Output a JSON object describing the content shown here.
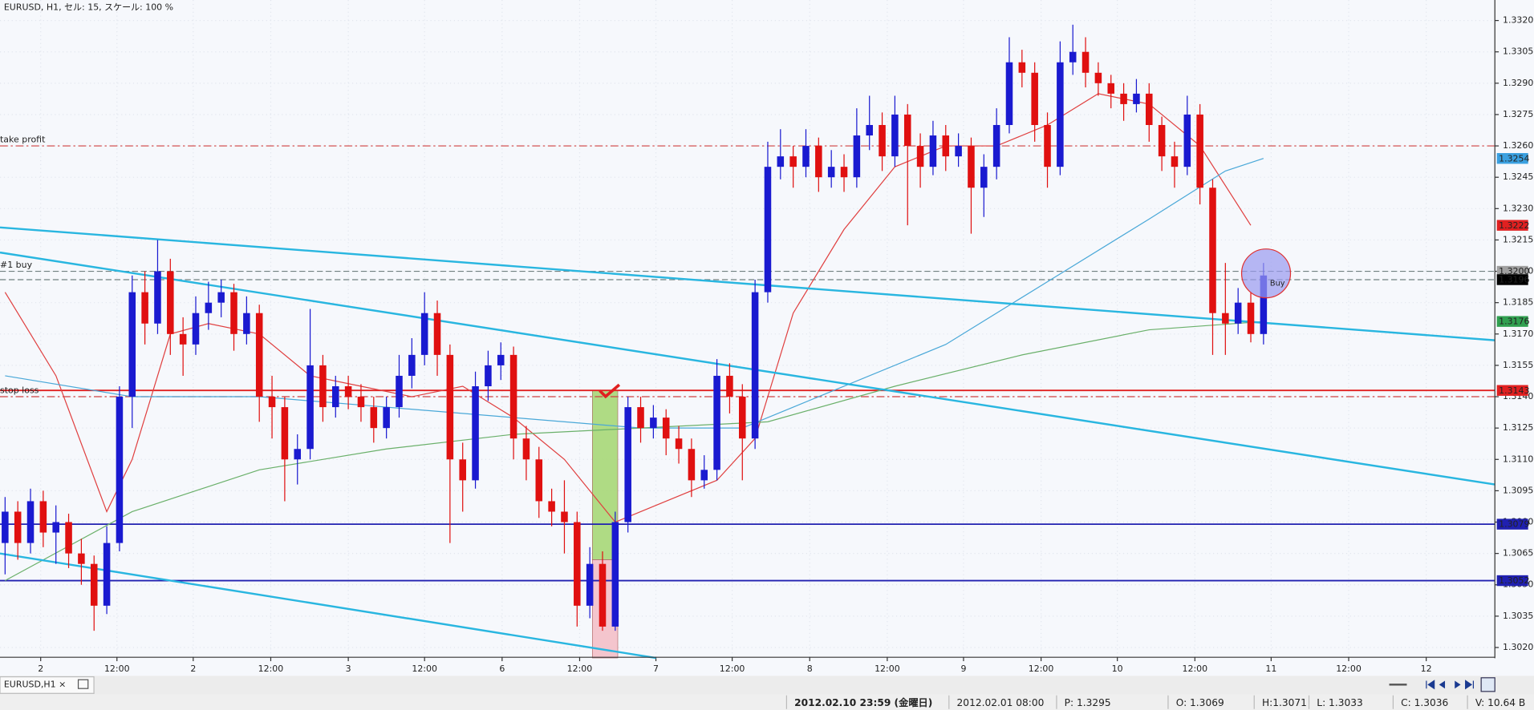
{
  "header": "EURUSD, H1, セル: 15, スケール: 100 %",
  "chart_data": {
    "type": "candlestick",
    "up_color": "#1a1ad0",
    "down_color": "#e01010",
    "grid": true,
    "xlim": [
      -0.4,
      117.2
    ],
    "ylim": [
      1.302,
      1.332
    ],
    "xticks": [
      {
        "value": 2.8,
        "label": "2"
      },
      {
        "value": 8.8,
        "label": "12:00"
      },
      {
        "value": 14.8,
        "label": "2"
      },
      {
        "value": 20.9,
        "label": "12:00"
      },
      {
        "value": 27.0,
        "label": "3"
      },
      {
        "value": 33.0,
        "label": "12:00"
      },
      {
        "value": 39.1,
        "label": "6"
      },
      {
        "value": 45.2,
        "label": "12:00"
      },
      {
        "value": 51.2,
        "label": "7"
      },
      {
        "value": 57.2,
        "label": "12:00"
      },
      {
        "value": 63.3,
        "label": "8"
      },
      {
        "value": 69.4,
        "label": "12:00"
      },
      {
        "value": 75.4,
        "label": "9"
      },
      {
        "value": 81.5,
        "label": "12:00"
      },
      {
        "value": 87.5,
        "label": "10"
      },
      {
        "value": 93.6,
        "label": "12:00"
      },
      {
        "value": 99.6,
        "label": "11"
      },
      {
        "value": 105.7,
        "label": "12:00"
      },
      {
        "value": 111.8,
        "label": "12"
      }
    ],
    "yticks": [
      {
        "value": 1.332,
        "label": "1.3320"
      },
      {
        "value": 1.3305,
        "label": "1.3305"
      },
      {
        "value": 1.329,
        "label": "1.3290"
      },
      {
        "value": 1.3275,
        "label": "1.3275"
      },
      {
        "value": 1.326,
        "label": "1.3260"
      },
      {
        "value": 1.3245,
        "label": "1.3245"
      },
      {
        "value": 1.323,
        "label": "1.3230"
      },
      {
        "value": 1.3215,
        "label": "1.3215"
      },
      {
        "value": 1.32,
        "label": "1.3200"
      },
      {
        "value": 1.3185,
        "label": "1.3185"
      },
      {
        "value": 1.317,
        "label": "1.3170"
      },
      {
        "value": 1.3155,
        "label": "1.3155"
      },
      {
        "value": 1.314,
        "label": "1.3140"
      },
      {
        "value": 1.3125,
        "label": "1.3125"
      },
      {
        "value": 1.311,
        "label": "1.3110"
      },
      {
        "value": 1.3095,
        "label": "1.3095"
      },
      {
        "value": 1.308,
        "label": "1.3080"
      },
      {
        "value": 1.3065,
        "label": "1.3065"
      },
      {
        "value": 1.305,
        "label": "1.3050"
      },
      {
        "value": 1.3035,
        "label": "1.3035"
      },
      {
        "value": 1.302,
        "label": "1.3020"
      }
    ],
    "candles": [
      [
        1.307,
        1.3092,
        1.3055,
        1.3085
      ],
      [
        1.3085,
        1.309,
        1.3062,
        1.307
      ],
      [
        1.307,
        1.3096,
        1.3065,
        1.309
      ],
      [
        1.309,
        1.3095,
        1.3068,
        1.3075
      ],
      [
        1.3075,
        1.3088,
        1.306,
        1.308
      ],
      [
        1.308,
        1.3084,
        1.3058,
        1.3065
      ],
      [
        1.3065,
        1.3072,
        1.305,
        1.306
      ],
      [
        1.306,
        1.3064,
        1.3028,
        1.304
      ],
      [
        1.304,
        1.3078,
        1.3036,
        1.307
      ],
      [
        1.307,
        1.3145,
        1.3066,
        1.314
      ],
      [
        1.314,
        1.3198,
        1.3125,
        1.319
      ],
      [
        1.319,
        1.32,
        1.3165,
        1.3175
      ],
      [
        1.3175,
        1.3215,
        1.317,
        1.32
      ],
      [
        1.32,
        1.3206,
        1.316,
        1.317
      ],
      [
        1.317,
        1.3178,
        1.315,
        1.3165
      ],
      [
        1.3165,
        1.3188,
        1.316,
        1.318
      ],
      [
        1.318,
        1.3195,
        1.3172,
        1.3185
      ],
      [
        1.3185,
        1.3196,
        1.3178,
        1.319
      ],
      [
        1.319,
        1.3194,
        1.3162,
        1.317
      ],
      [
        1.317,
        1.3188,
        1.3165,
        1.318
      ],
      [
        1.318,
        1.3184,
        1.3128,
        1.314
      ],
      [
        1.314,
        1.315,
        1.312,
        1.3135
      ],
      [
        1.3135,
        1.314,
        1.309,
        1.311
      ],
      [
        1.311,
        1.3122,
        1.3098,
        1.3115
      ],
      [
        1.3115,
        1.3182,
        1.311,
        1.3155
      ],
      [
        1.3155,
        1.316,
        1.3128,
        1.3135
      ],
      [
        1.3135,
        1.315,
        1.313,
        1.3145
      ],
      [
        1.3145,
        1.315,
        1.3134,
        1.314
      ],
      [
        1.314,
        1.3146,
        1.3128,
        1.3135
      ],
      [
        1.3135,
        1.314,
        1.3118,
        1.3125
      ],
      [
        1.3125,
        1.314,
        1.312,
        1.3135
      ],
      [
        1.3135,
        1.316,
        1.313,
        1.315
      ],
      [
        1.315,
        1.3168,
        1.3144,
        1.316
      ],
      [
        1.316,
        1.319,
        1.3155,
        1.318
      ],
      [
        1.318,
        1.3186,
        1.315,
        1.316
      ],
      [
        1.316,
        1.3165,
        1.307,
        1.311
      ],
      [
        1.311,
        1.3118,
        1.3085,
        1.31
      ],
      [
        1.31,
        1.3152,
        1.3096,
        1.3145
      ],
      [
        1.3145,
        1.3162,
        1.3138,
        1.3155
      ],
      [
        1.3155,
        1.3166,
        1.3148,
        1.316
      ],
      [
        1.316,
        1.3164,
        1.311,
        1.312
      ],
      [
        1.312,
        1.3126,
        1.31,
        1.311
      ],
      [
        1.311,
        1.3116,
        1.3082,
        1.309
      ],
      [
        1.309,
        1.3096,
        1.3078,
        1.3085
      ],
      [
        1.3085,
        1.31,
        1.3065,
        1.308
      ],
      [
        1.308,
        1.3085,
        1.303,
        1.304
      ],
      [
        1.304,
        1.3068,
        1.3034,
        1.306
      ],
      [
        1.306,
        1.3066,
        1.3028,
        1.303
      ],
      [
        1.303,
        1.3085,
        1.3028,
        1.308
      ],
      [
        1.308,
        1.314,
        1.3075,
        1.3135
      ],
      [
        1.3135,
        1.314,
        1.3118,
        1.3125
      ],
      [
        1.3125,
        1.3136,
        1.312,
        1.313
      ],
      [
        1.313,
        1.3134,
        1.3112,
        1.312
      ],
      [
        1.312,
        1.3126,
        1.3108,
        1.3115
      ],
      [
        1.3115,
        1.312,
        1.3092,
        1.31
      ],
      [
        1.31,
        1.3112,
        1.3096,
        1.3105
      ],
      [
        1.3105,
        1.3158,
        1.31,
        1.315
      ],
      [
        1.315,
        1.3156,
        1.3132,
        1.314
      ],
      [
        1.314,
        1.3146,
        1.31,
        1.312
      ],
      [
        1.312,
        1.3196,
        1.3115,
        1.319
      ],
      [
        1.319,
        1.3262,
        1.3185,
        1.325
      ],
      [
        1.325,
        1.3268,
        1.3244,
        1.3255
      ],
      [
        1.3255,
        1.326,
        1.324,
        1.325
      ],
      [
        1.325,
        1.3268,
        1.3245,
        1.326
      ],
      [
        1.326,
        1.3264,
        1.3238,
        1.3245
      ],
      [
        1.3245,
        1.3258,
        1.324,
        1.325
      ],
      [
        1.325,
        1.3256,
        1.3238,
        1.3245
      ],
      [
        1.3245,
        1.3278,
        1.324,
        1.3265
      ],
      [
        1.3265,
        1.3284,
        1.3258,
        1.327
      ],
      [
        1.327,
        1.3276,
        1.3248,
        1.3255
      ],
      [
        1.3255,
        1.3284,
        1.325,
        1.3275
      ],
      [
        1.3275,
        1.328,
        1.3222,
        1.326
      ],
      [
        1.326,
        1.3266,
        1.324,
        1.325
      ],
      [
        1.325,
        1.3272,
        1.3246,
        1.3265
      ],
      [
        1.3265,
        1.327,
        1.3248,
        1.3255
      ],
      [
        1.3255,
        1.3266,
        1.325,
        1.326
      ],
      [
        1.326,
        1.3264,
        1.3218,
        1.324
      ],
      [
        1.324,
        1.3256,
        1.3226,
        1.325
      ],
      [
        1.325,
        1.3278,
        1.3244,
        1.327
      ],
      [
        1.327,
        1.3312,
        1.3266,
        1.33
      ],
      [
        1.33,
        1.3306,
        1.3288,
        1.3295
      ],
      [
        1.3295,
        1.33,
        1.3262,
        1.327
      ],
      [
        1.327,
        1.3276,
        1.324,
        1.325
      ],
      [
        1.325,
        1.331,
        1.3246,
        1.33
      ],
      [
        1.33,
        1.3318,
        1.3294,
        1.3305
      ],
      [
        1.3305,
        1.3312,
        1.3288,
        1.3295
      ],
      [
        1.3295,
        1.33,
        1.3284,
        1.329
      ],
      [
        1.329,
        1.3294,
        1.3278,
        1.3285
      ],
      [
        1.3285,
        1.329,
        1.3272,
        1.328
      ],
      [
        1.328,
        1.3292,
        1.3276,
        1.3285
      ],
      [
        1.3285,
        1.329,
        1.3262,
        1.327
      ],
      [
        1.327,
        1.3274,
        1.3248,
        1.3255
      ],
      [
        1.3255,
        1.3262,
        1.324,
        1.325
      ],
      [
        1.325,
        1.3284,
        1.3246,
        1.3275
      ],
      [
        1.3275,
        1.328,
        1.3232,
        1.324
      ],
      [
        1.324,
        1.3244,
        1.316,
        1.318
      ],
      [
        1.318,
        1.3204,
        1.316,
        1.3175
      ],
      [
        1.3175,
        1.3192,
        1.317,
        1.3185
      ],
      [
        1.3185,
        1.319,
        1.3166,
        1.317
      ],
      [
        1.317,
        1.3204,
        1.3165,
        1.3198
      ]
    ],
    "series": [
      {
        "color": "#e04040",
        "x": [
          0,
          4,
          8,
          10,
          13,
          16,
          20,
          24,
          28,
          32,
          36,
          40,
          44,
          48,
          52,
          56,
          59,
          62,
          66,
          70,
          74,
          78,
          82,
          86,
          90,
          94,
          98
        ],
        "values": [
          1.319,
          1.315,
          1.3085,
          1.311,
          1.317,
          1.3175,
          1.317,
          1.315,
          1.3145,
          1.314,
          1.3145,
          1.313,
          1.311,
          1.308,
          1.309,
          1.31,
          1.312,
          1.318,
          1.322,
          1.325,
          1.326,
          1.326,
          1.327,
          1.3285,
          1.328,
          1.326,
          1.3222
        ]
      },
      {
        "color": "#4aa8d8",
        "x": [
          0,
          10,
          20,
          30,
          40,
          50,
          58,
          66,
          74,
          82,
          90,
          96,
          99
        ],
        "values": [
          1.315,
          1.314,
          1.314,
          1.3135,
          1.313,
          1.3125,
          1.3125,
          1.3145,
          1.3165,
          1.3195,
          1.3225,
          1.3248,
          1.3254
        ]
      },
      {
        "color": "#6ab06a",
        "x": [
          0,
          10,
          20,
          30,
          40,
          50,
          60,
          70,
          80,
          90,
          99
        ],
        "values": [
          1.3052,
          1.3085,
          1.3105,
          1.3115,
          1.3122,
          1.3125,
          1.3128,
          1.3145,
          1.316,
          1.3172,
          1.3176
        ]
      }
    ],
    "trendlines": [
      {
        "x": [
          -0.4,
          117.2
        ],
        "y": [
          1.3221,
          1.3167
        ]
      },
      {
        "x": [
          -0.4,
          117.2
        ],
        "y": [
          1.3209,
          1.3098
        ]
      },
      {
        "x": [
          -0.4,
          51.2
        ],
        "y": [
          1.3065,
          1.3015
        ]
      }
    ],
    "trendline_color": "#29b6e0",
    "levels": [
      {
        "value": 1.326,
        "color": "#d04040",
        "dash": "8 3 2 3",
        "text": "take profit"
      },
      {
        "value": 1.32,
        "color": "#708080",
        "dash": "6 3",
        "text": "#1 buy"
      },
      {
        "value": 1.3196,
        "color": "#708080",
        "dash": "6 3"
      },
      {
        "value": 1.3143,
        "color": "#e02020",
        "dash": "none"
      },
      {
        "value": 1.314,
        "color": "#d04040",
        "dash": "8 3 2 3",
        "text": "stop loss"
      },
      {
        "value": 1.3079,
        "color": "#2020b0",
        "dash": "none"
      },
      {
        "value": 1.3052,
        "color": "#2020b0",
        "dash": "none"
      }
    ],
    "tags": [
      {
        "value": 1.3254,
        "label": "1.3254",
        "bg": "#3aa0e0",
        "fg": "#000000"
      },
      {
        "value": 1.3222,
        "label": "1.3222",
        "bg": "#e02020",
        "fg": "#ffffff"
      },
      {
        "value": 1.32,
        "label": "1.3200",
        "bg": "#a0a0a0",
        "fg": "#000000"
      },
      {
        "value": 1.3196,
        "label": "1.3196",
        "bg": "#000000",
        "fg": "#ffffff"
      },
      {
        "value": 1.3176,
        "label": "1.3176",
        "bg": "#30a050",
        "fg": "#ffffff"
      },
      {
        "value": 1.3143,
        "label": "1.3143",
        "bg": "#e02020",
        "fg": "#ffffff"
      },
      {
        "value": 1.3079,
        "label": "1.3079",
        "bg": "#2020b0",
        "fg": "#ffffff"
      },
      {
        "value": 1.3052,
        "label": "1.3052",
        "bg": "#2020b0",
        "fg": "#ffffff"
      }
    ],
    "zones": [
      {
        "x": [
          46.2,
          48.2
        ],
        "y": [
          1.3143,
          1.3062
        ],
        "color": "#a8d878"
      },
      {
        "x": [
          46.2,
          48.2
        ],
        "y": [
          1.3062,
          1.3015
        ],
        "color": "#f4c0c8"
      }
    ],
    "marker": {
      "x": 99.2,
      "y": 1.3199,
      "text": "Buy"
    }
  },
  "tab": "EURUSD,H1",
  "status_bar": [
    "2012.02.10 23:59 (金曜日)",
    "2012.02.01 08:00",
    "P: 1.3295",
    "O: 1.3069",
    "H:1.3071",
    "L: 1.3033",
    "C: 1.3036",
    "V: 10.64 B"
  ]
}
